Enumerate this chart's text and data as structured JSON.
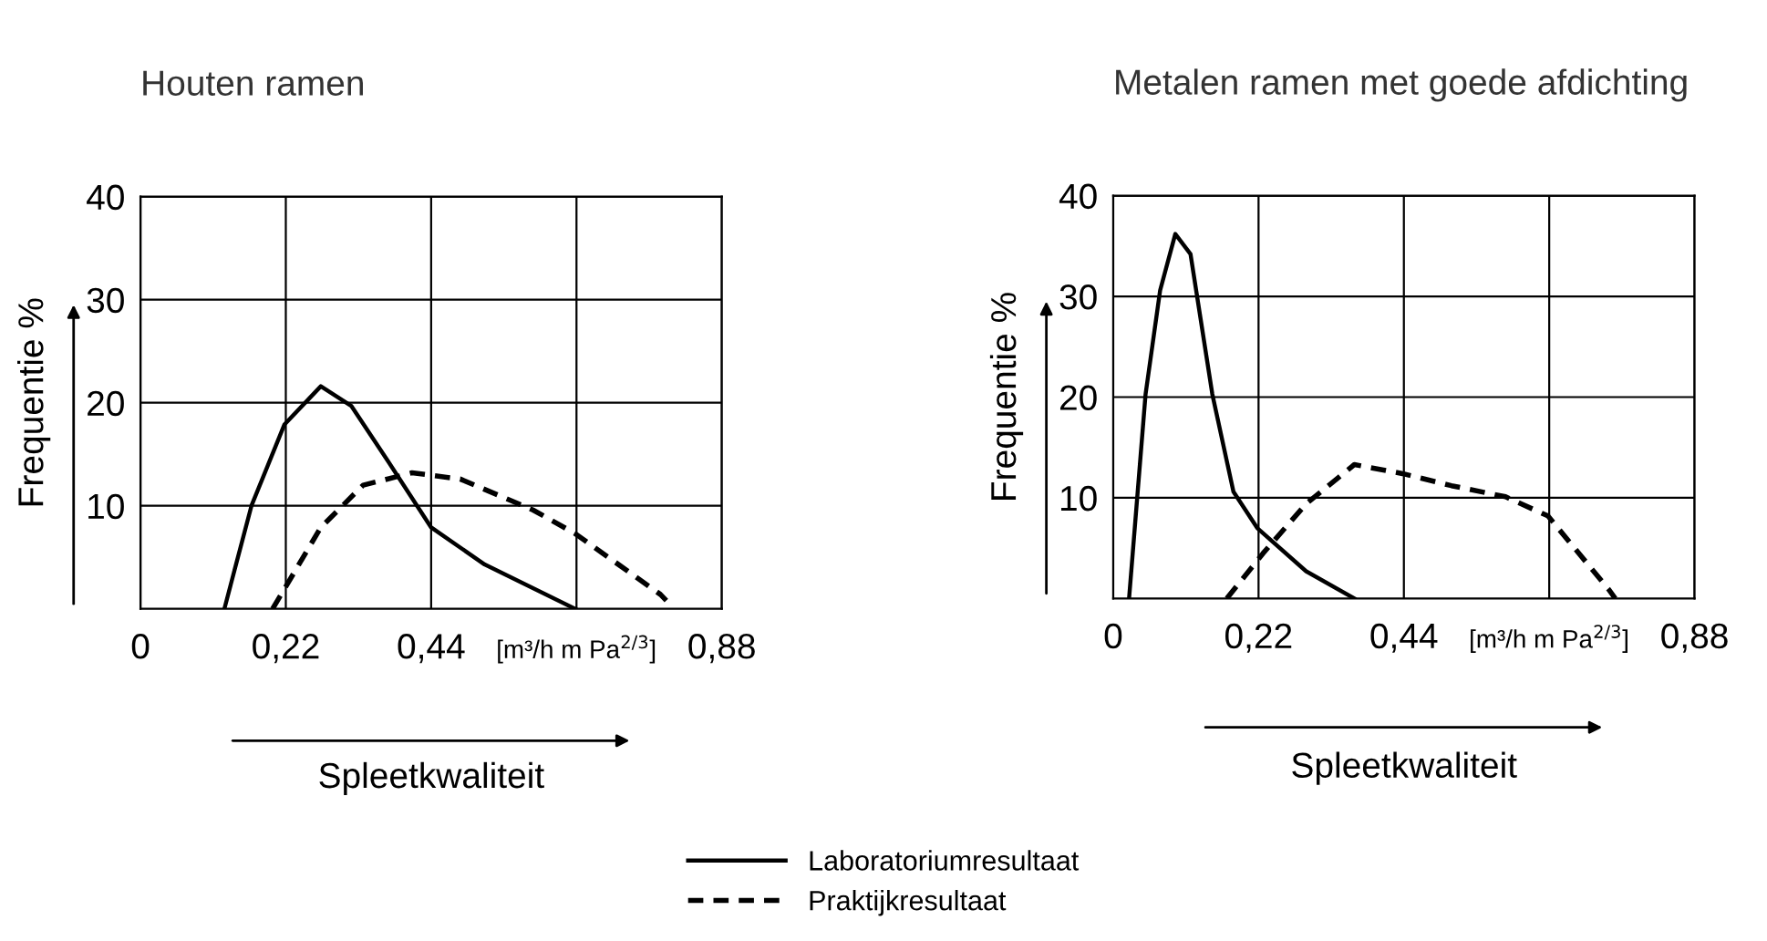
{
  "chart_data": [
    {
      "type": "line",
      "title": "Houten ramen",
      "xlabel": "Spleetkwaliteit",
      "ylabel": "Frequentie %",
      "xlim": [
        0,
        0.88
      ],
      "ylim": [
        0,
        40
      ],
      "xticks": [
        0,
        {
          "value": 0.22,
          "label": "0,22"
        },
        {
          "value": 0.44,
          "label": "0,44"
        },
        {
          "value": 0.66,
          "label": "[m³/h m Pa$^{2/3}$]"
        },
        {
          "value": 0.88,
          "label": "0,88"
        }
      ],
      "yticks": [
        10,
        20,
        30,
        40
      ],
      "grid": true,
      "legend": "bottom",
      "marker": "none",
      "series": [
        {
          "name": "Laboratoriumresultaat",
          "color": "#000000",
          "line_style": "solid",
          "x": [
            0.127,
            0.168,
            0.218,
            0.273,
            0.319,
            0.374,
            0.44,
            0.521,
            0.658
          ],
          "values": [
            0,
            10,
            17.9,
            21.6,
            19.7,
            14.4,
            7.9,
            4.3,
            0
          ]
        },
        {
          "name": "Praktijkresultaat",
          "color": "#000000",
          "line_style": "dashed",
          "x": [
            0.2,
            0.273,
            0.337,
            0.411,
            0.484,
            0.594,
            0.658,
            0.787,
            0.796
          ],
          "values": [
            0,
            7.9,
            12,
            13.2,
            12.6,
            9.6,
            7.3,
            1.4,
            0.8
          ]
        }
      ]
    },
    {
      "type": "line",
      "title": "Metalen ramen met goede afdichting",
      "xlabel": "Spleetkwaliteit",
      "ylabel": "Frequentie %",
      "xlim": [
        0,
        0.88
      ],
      "ylim": [
        0,
        40
      ],
      "xticks": [
        0,
        {
          "value": 0.22,
          "label": "0,22"
        },
        {
          "value": 0.44,
          "label": "0,44"
        },
        {
          "value": 0.66,
          "label": "[m³/h m Pa$^{2/3}$]"
        },
        {
          "value": 0.88,
          "label": "0,88"
        }
      ],
      "yticks": [
        10,
        20,
        30,
        40
      ],
      "grid": true,
      "marker": "none",
      "series": [
        {
          "color": "#000000",
          "line_style": "solid",
          "x": [
            0.024,
            0.049,
            0.071,
            0.094,
            0.117,
            0.15,
            0.182,
            0.218,
            0.292,
            0.365
          ],
          "values": [
            0,
            20.3,
            30.6,
            36.2,
            34.2,
            20.3,
            10.6,
            7,
            2.7,
            0
          ]
        },
        {
          "color": "#000000",
          "line_style": "dashed",
          "x": [
            0.172,
            0.227,
            0.292,
            0.365,
            0.438,
            0.512,
            0.594,
            0.658,
            0.75,
            0.76
          ],
          "values": [
            0,
            4.5,
            9.4,
            13.3,
            12.4,
            11.2,
            10.1,
            8.2,
            0.9,
            0
          ]
        }
      ]
    }
  ]
}
